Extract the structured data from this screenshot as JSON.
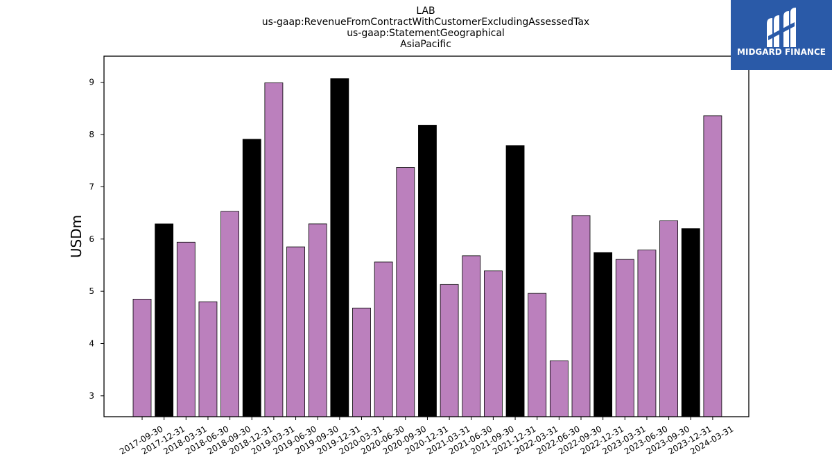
{
  "chart_data": {
    "type": "bar",
    "title_lines": [
      "LAB",
      "us-gaap:RevenueFromContractWithCustomerExcludingAssessedTax",
      "us-gaap:StatementGeographical",
      "AsiaPacific"
    ],
    "xlabel": "",
    "ylabel": "USDm",
    "ylim": [
      2.6,
      9.5
    ],
    "yticks": [
      3,
      4,
      5,
      6,
      7,
      8,
      9
    ],
    "grid": false,
    "categories": [
      "2017-09-30",
      "2017-12-31",
      "2018-03-31",
      "2018-06-30",
      "2018-09-30",
      "2018-12-31",
      "2019-03-31",
      "2019-06-30",
      "2019-09-30",
      "2019-12-31",
      "2020-03-31",
      "2020-06-30",
      "2020-09-30",
      "2020-12-31",
      "2021-03-31",
      "2021-06-30",
      "2021-09-30",
      "2021-12-31",
      "2022-03-31",
      "2022-06-30",
      "2022-09-30",
      "2022-12-31",
      "2023-03-31",
      "2023-06-30",
      "2023-09-30",
      "2023-12-31",
      "2024-03-31"
    ],
    "values": [
      4.85,
      6.29,
      5.94,
      4.8,
      6.53,
      7.91,
      8.99,
      5.85,
      6.29,
      9.07,
      4.68,
      5.56,
      7.37,
      8.18,
      5.13,
      5.68,
      5.39,
      7.79,
      4.96,
      3.67,
      6.45,
      5.74,
      5.61,
      5.79,
      6.35,
      6.2,
      8.36
    ],
    "bar_colors": {
      "default": "#bb80bd",
      "year_end": "#000000"
    },
    "bar_edge_color": "#000000"
  },
  "logo": {
    "text": "MIDGARD FINANCE",
    "background": "#2a5aa8"
  }
}
